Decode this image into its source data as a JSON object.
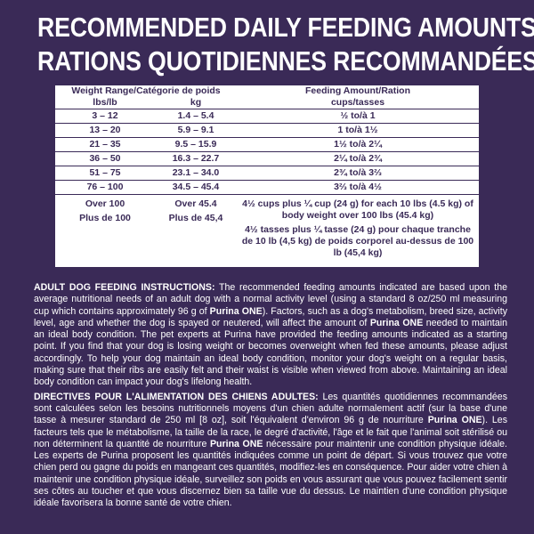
{
  "header": {
    "title_lines": [
      "RECOMMENDED DAILY FEEDING AMOUNTS /",
      "RATIONS QUOTIDIENNES RECOMMANDÉES"
    ]
  },
  "table": {
    "header_top": [
      "Weight Range/Catégorie de poids",
      "Feeding Amount/Ration"
    ],
    "header_units": [
      "lbs/lb",
      "kg",
      "cups/tasses"
    ],
    "rows": [
      [
        "3 – 12",
        "1.4 – 5.4",
        "½ to/à 1"
      ],
      [
        "13 – 20",
        "5.9 – 9.1",
        "1 to/à 1½"
      ],
      [
        "21 – 35",
        "9.5 – 15.9",
        "1½ to/à 2¼"
      ],
      [
        "36 – 50",
        "16.3 – 22.7",
        "2¼ to/à 2¾"
      ],
      [
        "51 – 75",
        "23.1 – 34.0",
        "2¾ to/à 3⅔"
      ],
      [
        "76 – 100",
        "34.5 – 45.4",
        "3⅔ to/à 4½"
      ]
    ],
    "over_row": [
      [
        "Over 100",
        "Plus de 100"
      ],
      [
        "Over 45.4",
        "Plus de 45,4"
      ],
      [
        "4½ cups plus ¼ cup (24 g) for each 10 lbs (4.5 kg) of body weight over 100 lbs (45.4 kg)",
        "4½ tasses plus ¼ tasse (24 g) pour chaque tranche de 10 lb (4,5 kg) de poids corporel au-dessus de 100 lb (45,4 kg)"
      ]
    ]
  },
  "instructions": [
    [
      {
        "text": "ADULT DOG FEEDING INSTRUCTIONS:",
        "bold": true
      },
      {
        "text": " The recommended feeding amounts indicated are based upon the average nutritional needs of an adult dog with a normal activity level (using a standard 8 oz/250 ml measuring cup which contains approximately 96 g of ",
        "bold": false
      },
      {
        "text": "Purina ONE",
        "bold": true
      },
      {
        "text": "). Factors, such as a dog's metabolism, breed size, activity level, age and whether the dog is spayed or neutered, will affect the amount of ",
        "bold": false
      },
      {
        "text": "Purina ONE",
        "bold": true
      },
      {
        "text": " needed to maintain an ideal body condition. The pet experts at Purina have provided the feeding amounts indicated as a starting point. If you find that your dog is losing weight or becomes overweight when fed these amounts, please adjust accordingly. To help your dog maintain an ideal body condition, monitor your dog's weight on a regular basis, making sure that their ribs are easily felt and their waist is visible when viewed from above. Maintaining an ideal body condition can impact your dog's lifelong health.",
        "bold": false
      }
    ],
    [
      {
        "text": "DIRECTIVES POUR L'ALIMENTATION DES CHIENS ADULTES:",
        "bold": true
      },
      {
        "text": " Les quantités quotidiennes recommandées sont calculées selon les besoins nutritionnels moyens d'un chien adulte normalement actif (sur la base d'une tasse à mesurer standard de 250 ml [8 oz], soit l'équivalent d'environ 96 g de nourriture ",
        "bold": false
      },
      {
        "text": "Purina ONE",
        "bold": true
      },
      {
        "text": "). Les facteurs tels que le métabolisme, la taille de la race, le degré d'activité, l'âge et le fait que l'animal soit stérilisé ou non déterminent la quantité de nourriture ",
        "bold": false
      },
      {
        "text": "Purina ONE",
        "bold": true
      },
      {
        "text": " nécessaire pour maintenir une condition physique idéale. Les experts de Purina proposent les quantités indiquées comme un point de départ. Si vous trouvez que votre chien perd ou gagne du poids en mangeant ces quantités, modifiez-les en conséquence. Pour aider votre chien à maintenir une condition physique idéale, surveillez son poids en vous assurant que vous pouvez facilement sentir ses côtes au toucher et que vous discernez bien sa taille vue du dessus. Le maintien d'une condition physique idéale favorisera la bonne santé de votre chien.",
        "bold": false
      }
    ]
  ]
}
